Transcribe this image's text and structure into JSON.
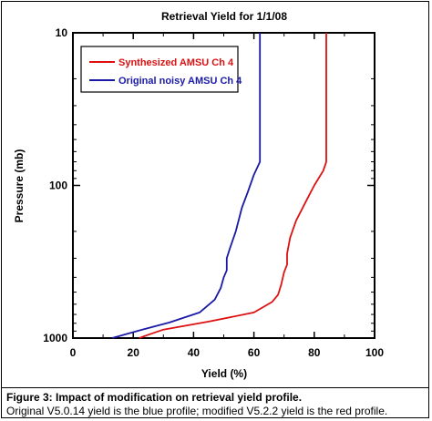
{
  "chart_data": {
    "type": "line",
    "title": "Retrieval Yield for 1/1/08",
    "xlabel": "Yield  (%)",
    "ylabel": "Pressure  (mb)",
    "xlim": [
      0,
      100
    ],
    "ylim": [
      1000,
      10
    ],
    "yscale": "log",
    "y_inverted": true,
    "grid": false,
    "legend_position": "top-left",
    "x_ticks": [
      0,
      20,
      40,
      60,
      80,
      100
    ],
    "y_ticks": [
      10,
      100,
      1000
    ],
    "series": [
      {
        "name": "Synthesized AMSU Ch 4",
        "color": "#dd1111",
        "points": [
          [
            84,
            10
          ],
          [
            84,
            70
          ],
          [
            83,
            80
          ],
          [
            80,
            100
          ],
          [
            77,
            130
          ],
          [
            74,
            170
          ],
          [
            72,
            220
          ],
          [
            71,
            280
          ],
          [
            71,
            330
          ],
          [
            70,
            370
          ],
          [
            69,
            450
          ],
          [
            68,
            520
          ],
          [
            66,
            580
          ],
          [
            60,
            680
          ],
          [
            45,
            780
          ],
          [
            30,
            880
          ],
          [
            25,
            950
          ],
          [
            22,
            1000
          ]
        ]
      },
      {
        "name": "Original noisy AMSU Ch 4",
        "color": "#1a1aa6",
        "points": [
          [
            62,
            10
          ],
          [
            62,
            70
          ],
          [
            60,
            85
          ],
          [
            58,
            110
          ],
          [
            56,
            140
          ],
          [
            54,
            200
          ],
          [
            52,
            260
          ],
          [
            51,
            300
          ],
          [
            51,
            360
          ],
          [
            50,
            400
          ],
          [
            49,
            470
          ],
          [
            47,
            560
          ],
          [
            42,
            680
          ],
          [
            32,
            790
          ],
          [
            23,
            880
          ],
          [
            17,
            950
          ],
          [
            13,
            1000
          ]
        ]
      }
    ]
  },
  "caption": {
    "title": "Figure 3: Impact of modification on retrieval yield profile.",
    "text": "Original V5.0.14 yield is the blue profile;  modified V5.2.2 yield is the red profile."
  }
}
